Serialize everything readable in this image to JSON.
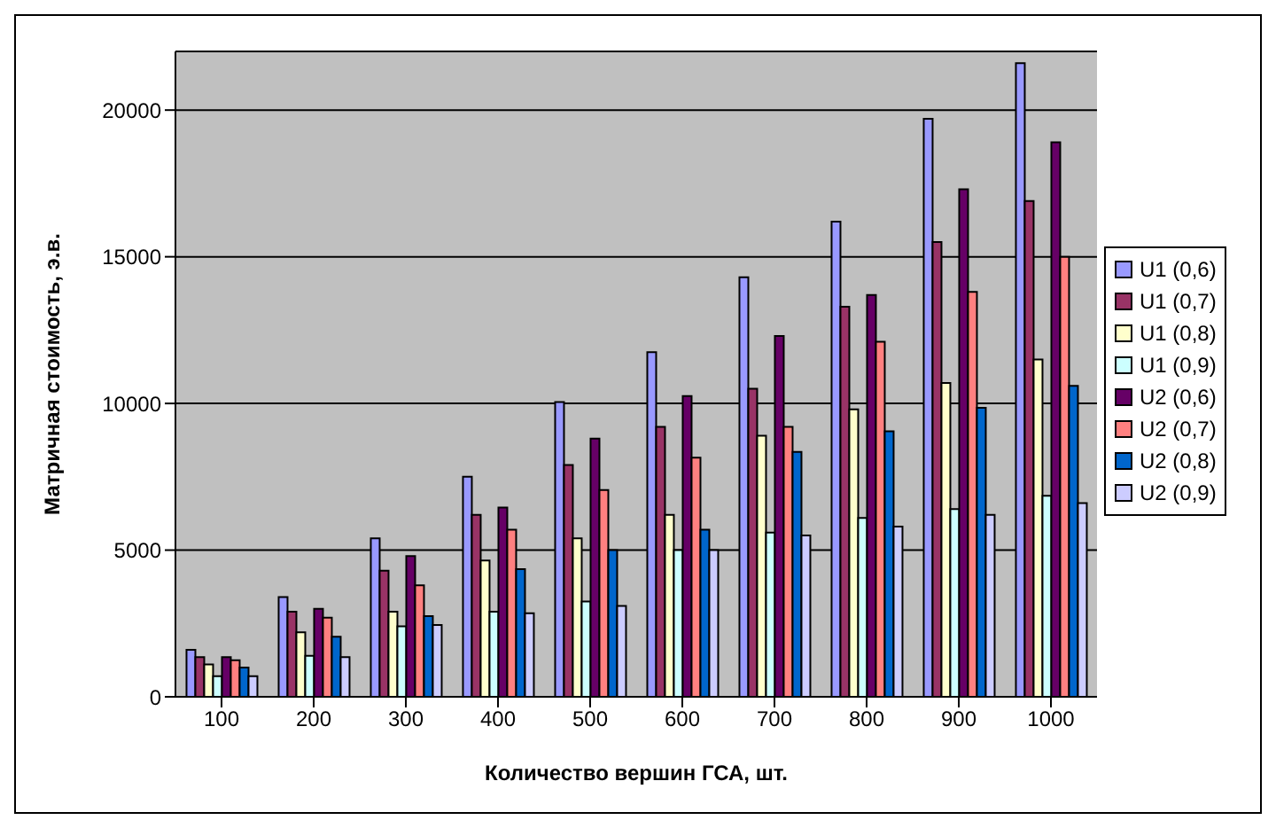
{
  "chart_data": {
    "type": "bar",
    "xlabel": "Количество вершин ГСА, шт.",
    "ylabel": "Матричная стоимость, э.в.",
    "categories": [
      "100",
      "200",
      "300",
      "400",
      "500",
      "600",
      "700",
      "800",
      "900",
      "1000"
    ],
    "series": [
      {
        "name": "U1 (0,6)",
        "color": "#9999ff",
        "values": [
          1600,
          3400,
          5400,
          7500,
          10050,
          11750,
          14300,
          16200,
          19700,
          21600
        ]
      },
      {
        "name": "U1 (0,7)",
        "color": "#993366",
        "values": [
          1350,
          2900,
          4300,
          6200,
          7900,
          9200,
          10500,
          13300,
          15500,
          16900
        ]
      },
      {
        "name": "U1 (0,8)",
        "color": "#ffffcc",
        "values": [
          1100,
          2200,
          2900,
          4650,
          5400,
          6200,
          8900,
          9800,
          10700,
          11500
        ]
      },
      {
        "name": "U1 (0,9)",
        "color": "#ccffff",
        "values": [
          700,
          1400,
          2400,
          2900,
          3250,
          5000,
          5600,
          6100,
          6400,
          6850
        ]
      },
      {
        "name": "U2 (0,6)",
        "color": "#660066",
        "values": [
          1350,
          3000,
          4800,
          6450,
          8800,
          10250,
          12300,
          13700,
          17300,
          18900
        ]
      },
      {
        "name": "U2 (0,7)",
        "color": "#ff8080",
        "values": [
          1250,
          2700,
          3800,
          5700,
          7050,
          8150,
          9200,
          12100,
          13800,
          15000
        ]
      },
      {
        "name": "U2 (0,8)",
        "color": "#0066cc",
        "values": [
          1000,
          2050,
          2750,
          4350,
          5000,
          5700,
          8350,
          9050,
          9850,
          10600
        ]
      },
      {
        "name": "U2 (0,9)",
        "color": "#ccccff",
        "values": [
          700,
          1350,
          2450,
          2850,
          3100,
          5000,
          5500,
          5800,
          6200,
          6600
        ]
      }
    ],
    "ylim": [
      0,
      22000
    ],
    "yticks": [
      0,
      5000,
      10000,
      15000,
      20000
    ],
    "grid": "y",
    "legend": "right"
  }
}
